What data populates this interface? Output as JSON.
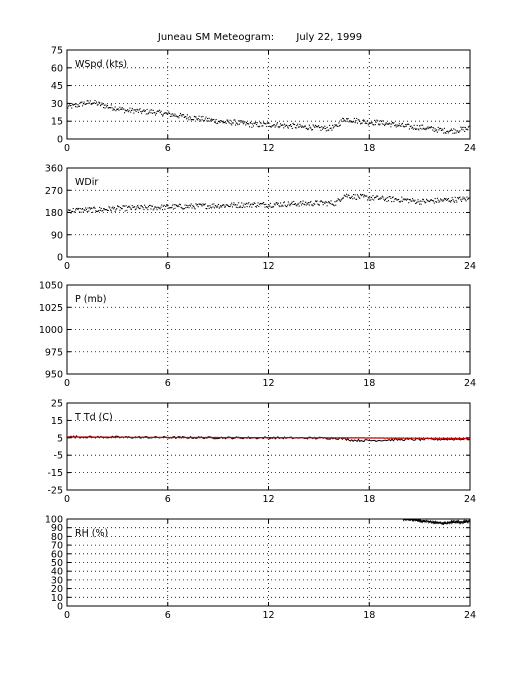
{
  "title": "Juneau SM Meteogram:       July 22, 1999",
  "chart_data": [
    {
      "type": "scatter",
      "label": "WSpd (kts)",
      "xlim": [
        0,
        24
      ],
      "xticks": [
        0,
        6,
        12,
        18,
        24
      ],
      "ylim": [
        0,
        75
      ],
      "yticks": [
        0,
        15,
        30,
        45,
        60,
        75
      ],
      "grid": true,
      "series": [
        {
          "color": "#000000",
          "x": [
            0,
            0.5,
            1,
            1.5,
            2,
            2.5,
            3,
            3.5,
            4,
            4.5,
            5,
            5.5,
            6,
            6.5,
            7,
            7.5,
            8,
            8.5,
            9,
            9.5,
            10,
            10.5,
            11,
            11.5,
            12,
            12.5,
            13,
            13.5,
            14,
            14.5,
            15,
            15.5,
            16,
            16.5,
            17,
            17.5,
            18,
            18.5,
            19,
            19.5,
            20,
            20.5,
            21,
            21.5,
            22,
            22.5,
            23,
            23.5,
            24
          ],
          "values": [
            27,
            28,
            30,
            31,
            29,
            27,
            26,
            24,
            24,
            23,
            23,
            22,
            21,
            20,
            19,
            18,
            17,
            16,
            15,
            14,
            14,
            13,
            12,
            12,
            12,
            12,
            11,
            11,
            10,
            10,
            9,
            9,
            10,
            17,
            16,
            15,
            14,
            14,
            13,
            12,
            11,
            10,
            10,
            9,
            8,
            7,
            7,
            8,
            9
          ]
        }
      ]
    },
    {
      "type": "scatter",
      "label": "WDir",
      "xlim": [
        0,
        24
      ],
      "xticks": [
        0,
        6,
        12,
        18,
        24
      ],
      "ylim": [
        0,
        360
      ],
      "yticks": [
        0,
        90,
        180,
        270,
        360
      ],
      "grid": true,
      "series": [
        {
          "color": "#000000",
          "x": [
            0,
            1,
            2,
            3,
            4,
            5,
            6,
            7,
            8,
            9,
            10,
            11,
            12,
            13,
            14,
            15,
            16,
            16.5,
            17,
            18,
            19,
            20,
            20.5,
            21,
            22,
            23,
            24
          ],
          "values": [
            188,
            190,
            192,
            196,
            198,
            200,
            202,
            204,
            206,
            208,
            210,
            212,
            212,
            214,
            216,
            218,
            218,
            250,
            245,
            240,
            235,
            232,
            228,
            224,
            228,
            232,
            235
          ]
        }
      ]
    },
    {
      "type": "scatter",
      "label": "P (mb)",
      "xlim": [
        0,
        24
      ],
      "xticks": [
        0,
        6,
        12,
        18,
        24
      ],
      "ylim": [
        950,
        1050
      ],
      "yticks": [
        950,
        975,
        1000,
        1025,
        1050
      ],
      "grid": true,
      "series": []
    },
    {
      "type": "line",
      "label": "T Td (C)",
      "xlim": [
        0,
        24
      ],
      "xticks": [
        0,
        6,
        12,
        18,
        24
      ],
      "ylim": [
        -25,
        25
      ],
      "yticks": [
        -25,
        -15,
        -5,
        5,
        15,
        25
      ],
      "grid": true,
      "series": [
        {
          "color": "#000000",
          "x": [
            0,
            2,
            4,
            6,
            8,
            10,
            12,
            14,
            16,
            16.5,
            17,
            18,
            19,
            20,
            22,
            24
          ],
          "values": [
            5.6,
            5.4,
            5.3,
            5.2,
            5.1,
            5.0,
            5.0,
            4.9,
            4.8,
            4.4,
            3.6,
            3.4,
            3.7,
            4.0,
            4.1,
            4.3
          ]
        },
        {
          "color": "#cc0000",
          "x": [
            0,
            2,
            4,
            6,
            8,
            10,
            12,
            14,
            16,
            18,
            20,
            22,
            24
          ],
          "values": [
            5.5,
            5.4,
            5.3,
            5.2,
            5.2,
            5.1,
            5.1,
            5.0,
            5.0,
            4.9,
            4.8,
            4.7,
            4.6
          ]
        }
      ]
    },
    {
      "type": "line",
      "label": "RH (%)",
      "xlim": [
        0,
        24
      ],
      "xticks": [
        0,
        6,
        12,
        18,
        24
      ],
      "ylim": [
        0,
        100
      ],
      "yticks": [
        0,
        10,
        20,
        30,
        40,
        50,
        60,
        70,
        80,
        90,
        100
      ],
      "grid": true,
      "series": [
        {
          "color": "#000000",
          "x": [
            20,
            20.5,
            21,
            21.5,
            22,
            22.5,
            23,
            23.5,
            24
          ],
          "values": [
            100,
            99,
            98,
            97,
            96,
            95,
            97,
            96,
            98
          ]
        }
      ]
    }
  ]
}
